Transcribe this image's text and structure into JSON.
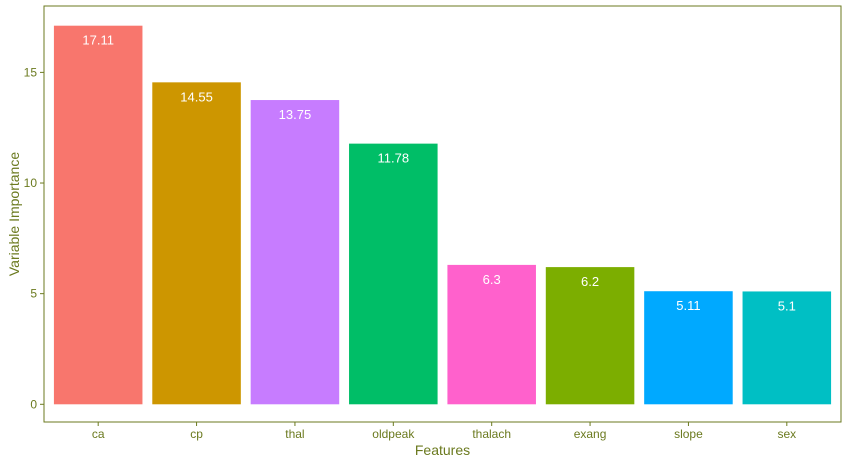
{
  "chart_data": {
    "type": "bar",
    "title": "",
    "xlabel": "Features",
    "ylabel": "Variable Importance",
    "categories": [
      "ca",
      "cp",
      "thal",
      "oldpeak",
      "thalach",
      "exang",
      "slope",
      "sex"
    ],
    "values": [
      17.11,
      14.55,
      13.75,
      11.78,
      6.3,
      6.2,
      5.11,
      5.1
    ],
    "value_labels": [
      "17.11",
      "14.55",
      "13.75",
      "11.78",
      "6.3",
      "6.2",
      "5.11",
      "5.1"
    ],
    "colors": [
      "#F8766D",
      "#CD9600",
      "#C77CFF",
      "#00BE67",
      "#FF61CC",
      "#7CAE00",
      "#00A9FF",
      "#00BFC4"
    ],
    "yticks": [
      0,
      5,
      10,
      15
    ],
    "ylim": [
      -0.8,
      18.0
    ],
    "grid": false,
    "legend": "none",
    "axis_color": "#6b7a1f"
  }
}
